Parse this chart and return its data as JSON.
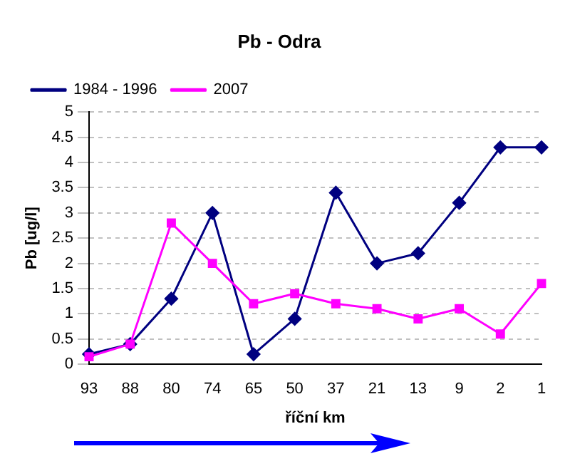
{
  "chart_data": {
    "type": "line",
    "title": "Pb - Odra",
    "xlabel": "říční km",
    "ylabel": "Pb [ug/l]",
    "categories": [
      "93",
      "88",
      "80",
      "74",
      "65",
      "50",
      "37",
      "21",
      "13",
      "9",
      "2",
      "1"
    ],
    "series": [
      {
        "name": "1984 - 1996",
        "color": "#000080",
        "marker": "diamond",
        "values": [
          0.2,
          0.4,
          1.3,
          3.0,
          0.2,
          0.9,
          3.4,
          2.0,
          2.2,
          3.2,
          4.3,
          4.3
        ]
      },
      {
        "name": "2007",
        "color": "#ff00ff",
        "marker": "square",
        "values": [
          0.15,
          0.4,
          2.8,
          2.0,
          1.2,
          1.4,
          1.2,
          1.1,
          0.9,
          1.1,
          0.6,
          1.6
        ]
      }
    ],
    "ylim": [
      0,
      5
    ],
    "yticks": [
      0,
      0.5,
      1,
      1.5,
      2,
      2.5,
      3,
      3.5,
      4,
      4.5,
      5
    ],
    "grid": "y",
    "legend": "top left"
  }
}
